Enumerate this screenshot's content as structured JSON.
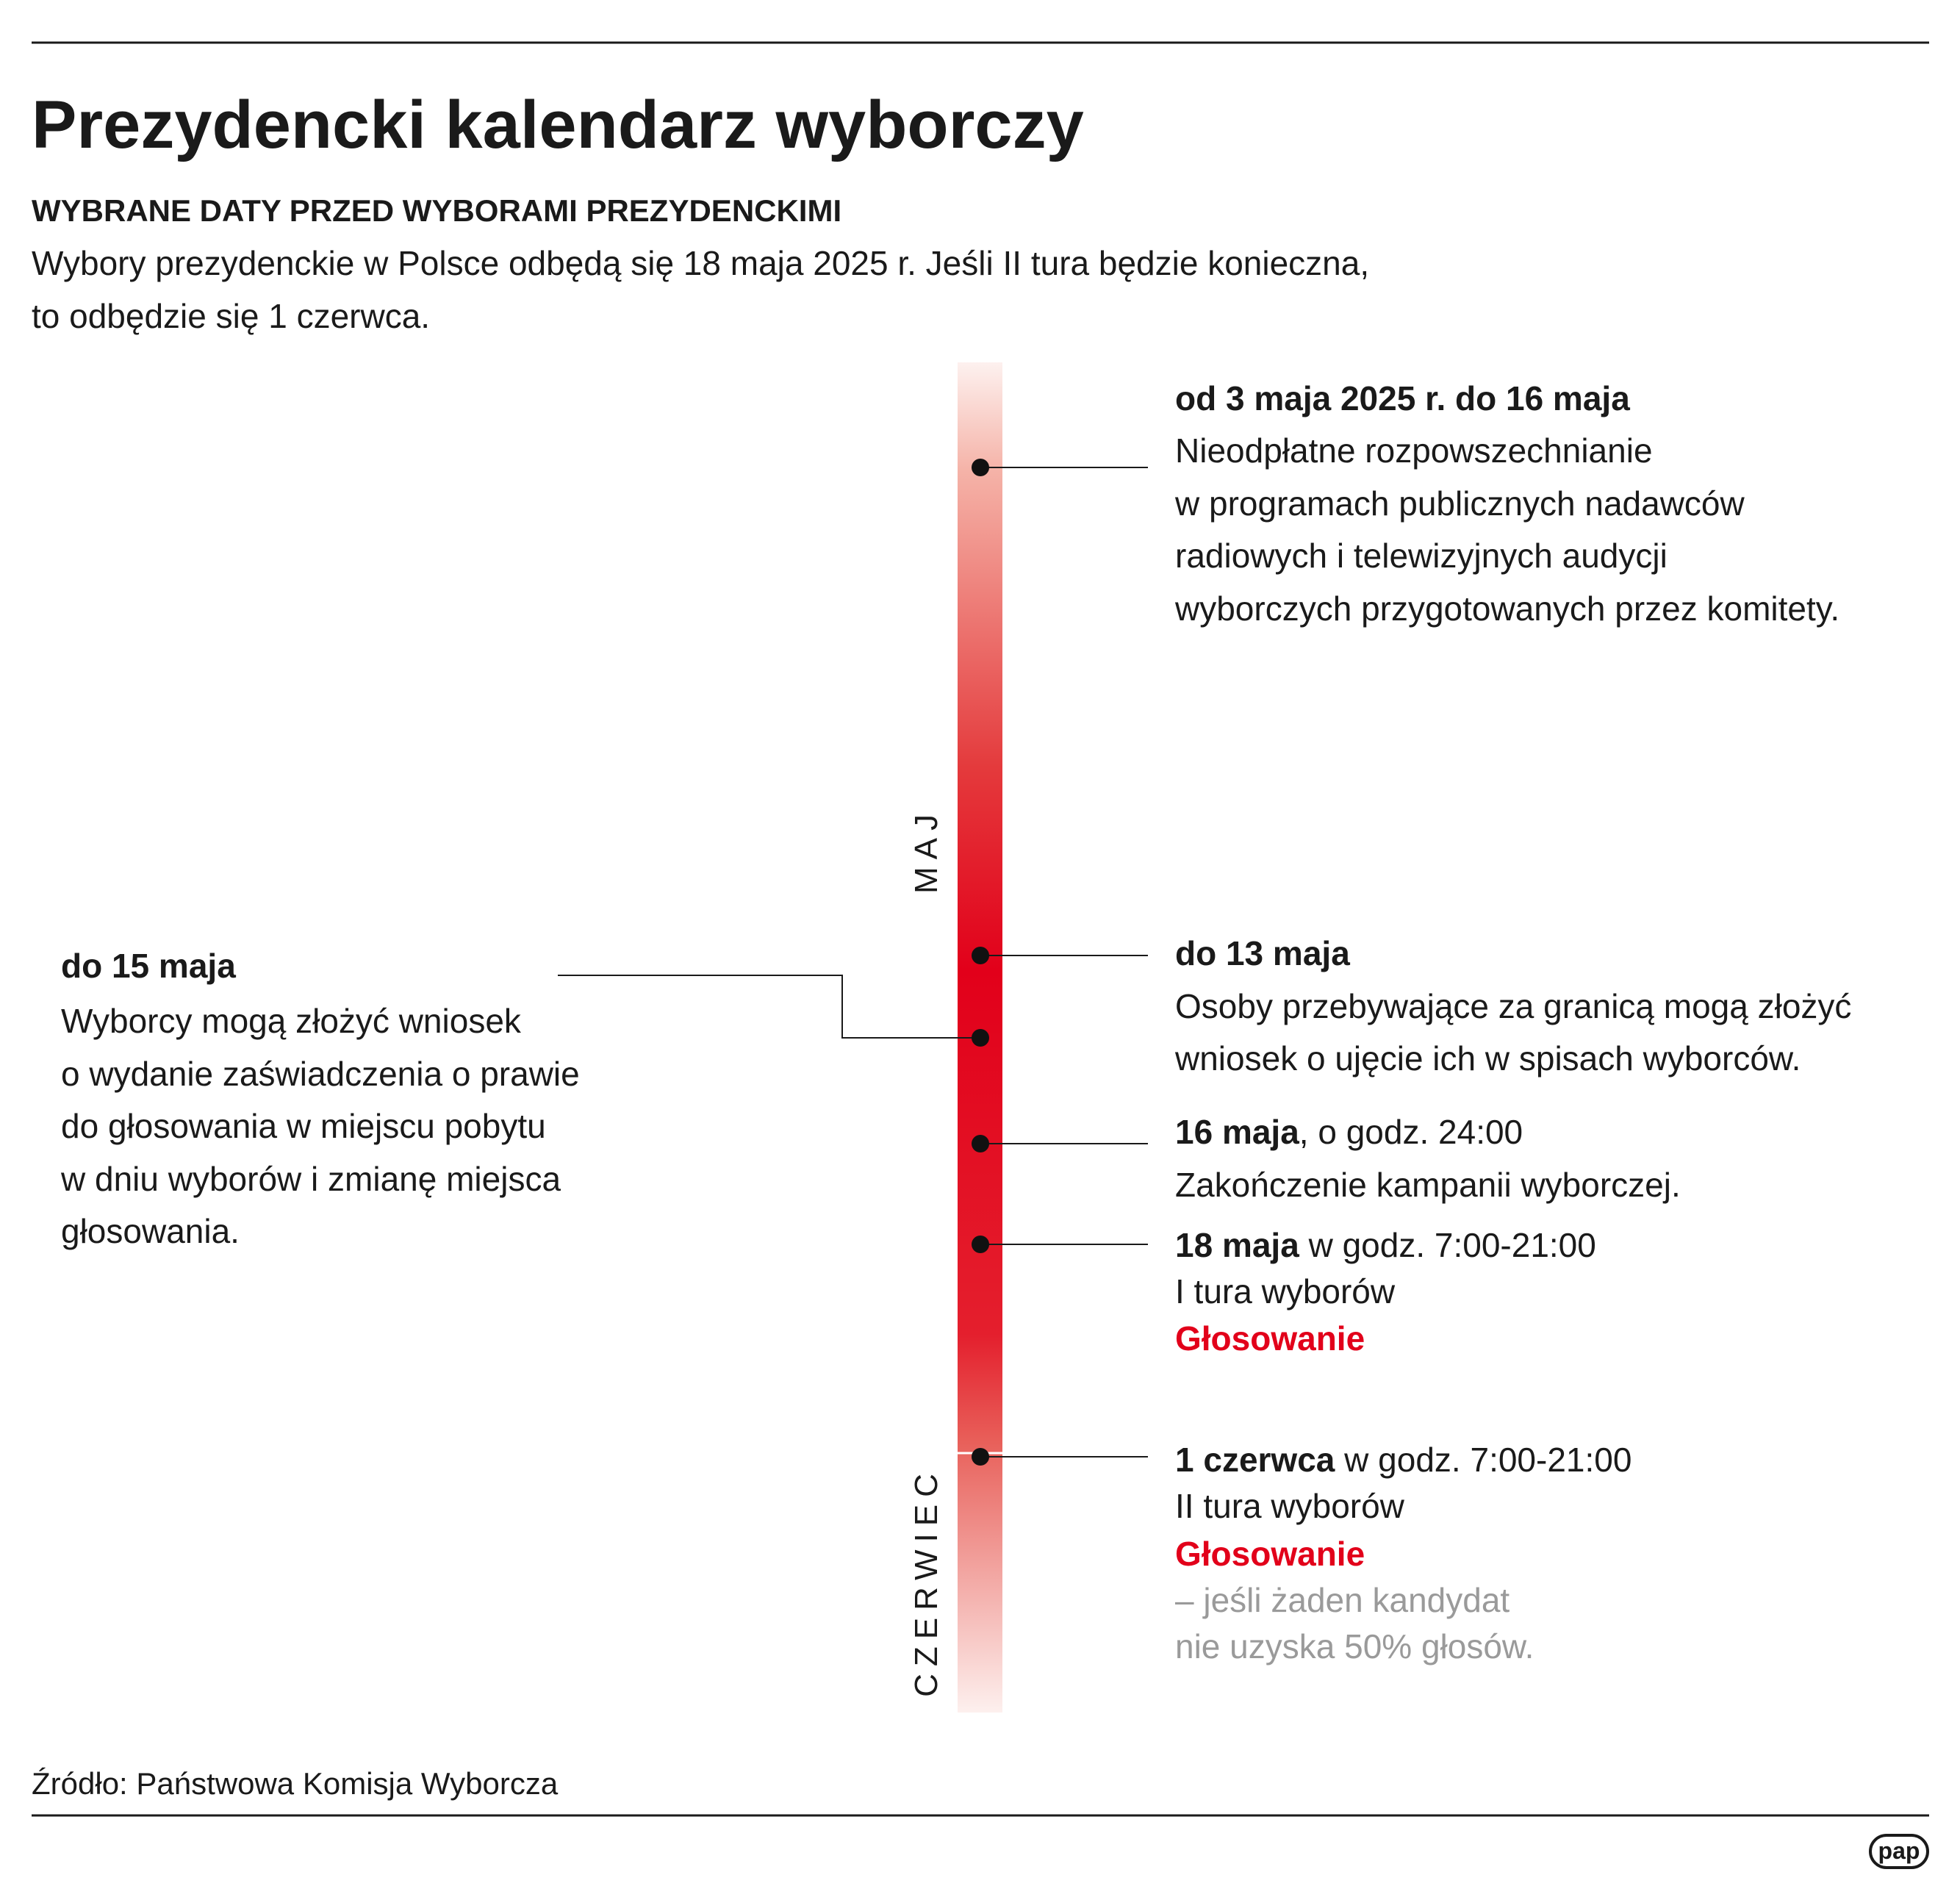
{
  "header": {
    "title": "Prezydencki kalendarz wyborczy",
    "subtitle": "WYBRANE DATY PRZED WYBORAMI PREZYDENCKIMI",
    "description": [
      "Wybory prezydenckie w Polsce odbędą się 18 maja 2025 r. Jeśli II tura będzie konieczna,",
      "to odbędzie się 1 czerwca."
    ]
  },
  "timeline": {
    "months": [
      "MAJ",
      "CZERWIEC"
    ],
    "events": [
      {
        "date": "od 3 maja 2025 r. do 16 maja",
        "lines": [
          "Nieodpłatne rozpowszechnianie",
          "w programach publicznych nadawców",
          "radiowych i telewizyjnych audycji",
          "wyborczych przygotowanych przez komitety."
        ]
      },
      {
        "date": "do 15 maja",
        "lines": [
          "Wyborcy mogą złożyć wniosek",
          "o wydanie zaświadczenia o prawie",
          "do głosowania w miejscu pobytu",
          "w dniu wyborów i zmianę miejsca",
          "głosowania."
        ]
      },
      {
        "date": "do 13 maja",
        "lines": [
          "Osoby przebywające za granicą mogą złożyć",
          "wniosek o ujęcie ich w spisach wyborców."
        ]
      },
      {
        "date": "16 maja",
        "date_suffix": ", o godz. 24:00",
        "lines": [
          "Zakończenie kampanii wyborczej."
        ]
      },
      {
        "date": "18 maja",
        "date_suffix": " w godz. 7:00-21:00",
        "lines": [
          "I tura wyborów"
        ],
        "highlight": "Głosowanie"
      },
      {
        "date": "1 czerwca",
        "date_suffix": " w godz. 7:00-21:00",
        "lines": [
          "II tura wyborów"
        ],
        "highlight": "Głosowanie",
        "note": [
          "– jeśli żaden kandydat",
          "nie uzyska 50% głosów."
        ]
      }
    ]
  },
  "footer": {
    "source": "Źródło: Państwowa Komisja Wyborcza",
    "logo": "pap"
  }
}
